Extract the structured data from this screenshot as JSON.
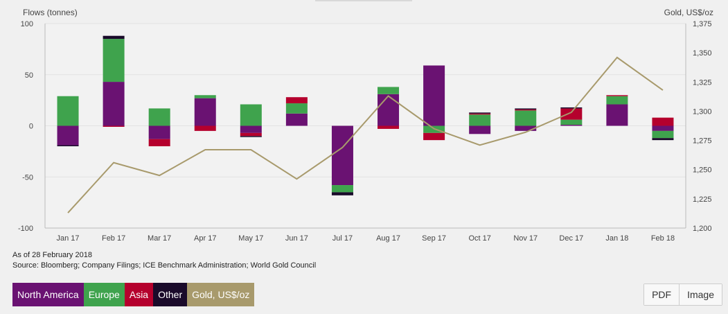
{
  "chart_data": {
    "type": "bar",
    "stacked": true,
    "left_axis_title": "Flows (tonnes)",
    "right_axis_title": "Gold, US$/oz",
    "categories": [
      "Jan 17",
      "Feb 17",
      "Mar 17",
      "Apr 17",
      "May 17",
      "Jun 17",
      "Jul 17",
      "Aug 17",
      "Sep 17",
      "Oct 17",
      "Nov 17",
      "Dec 17",
      "Jan 18",
      "Feb 18"
    ],
    "ylim": [
      -100,
      100
    ],
    "yticks": [
      100,
      50,
      0,
      -50,
      -100
    ],
    "ytick_labels": [
      "100",
      "50",
      "0",
      "-50",
      "-100"
    ],
    "y2lim": [
      1200,
      1375
    ],
    "y2ticks": [
      1375,
      1350,
      1325,
      1300,
      1275,
      1250,
      1225,
      1200
    ],
    "y2tick_labels": [
      "1,375",
      "1,350",
      "1,325",
      "1,300",
      "1,275",
      "1,250",
      "1,225",
      "1,200"
    ],
    "grid": "horizontal",
    "series": [
      {
        "name": "North America",
        "color": "#6a1272",
        "type": "bar",
        "values": [
          -19,
          43,
          -13,
          27,
          -7,
          12,
          -58,
          31,
          59,
          -8,
          -5,
          1,
          21,
          -5
        ]
      },
      {
        "name": "Europe",
        "color": "#3fa34d",
        "type": "bar",
        "values": [
          29,
          42,
          17,
          3,
          21,
          10,
          -7,
          7,
          -7,
          11,
          15,
          5,
          8,
          -7
        ]
      },
      {
        "name": "Asia",
        "color": "#b5002d",
        "type": "bar",
        "values": [
          0,
          -1,
          -7,
          -5,
          -3,
          6,
          0,
          -3,
          -7,
          1,
          1,
          11,
          1,
          8
        ]
      },
      {
        "name": "Other",
        "color": "#1a0a2a",
        "type": "bar",
        "values": [
          -1,
          3,
          0,
          0,
          -1,
          0,
          -3,
          0,
          0,
          1,
          1,
          1,
          0,
          -2
        ]
      },
      {
        "name": "Gold, US$/oz",
        "color": "#a89a6c",
        "type": "line",
        "axis": "right",
        "values": [
          1213,
          1256,
          1245,
          1267,
          1267,
          1242,
          1269,
          1313,
          1285,
          1271,
          1282,
          1299,
          1346,
          1318
        ]
      }
    ]
  },
  "footnote_date": "As of 28 February 2018",
  "footnote_source": "Source: Bloomberg; Company Filings; ICE Benchmark Administration; World Gold Council",
  "legend": [
    "North America",
    "Europe",
    "Asia",
    "Other",
    "Gold, US$/oz"
  ],
  "export": {
    "pdf_label": "PDF",
    "image_label": "Image"
  }
}
